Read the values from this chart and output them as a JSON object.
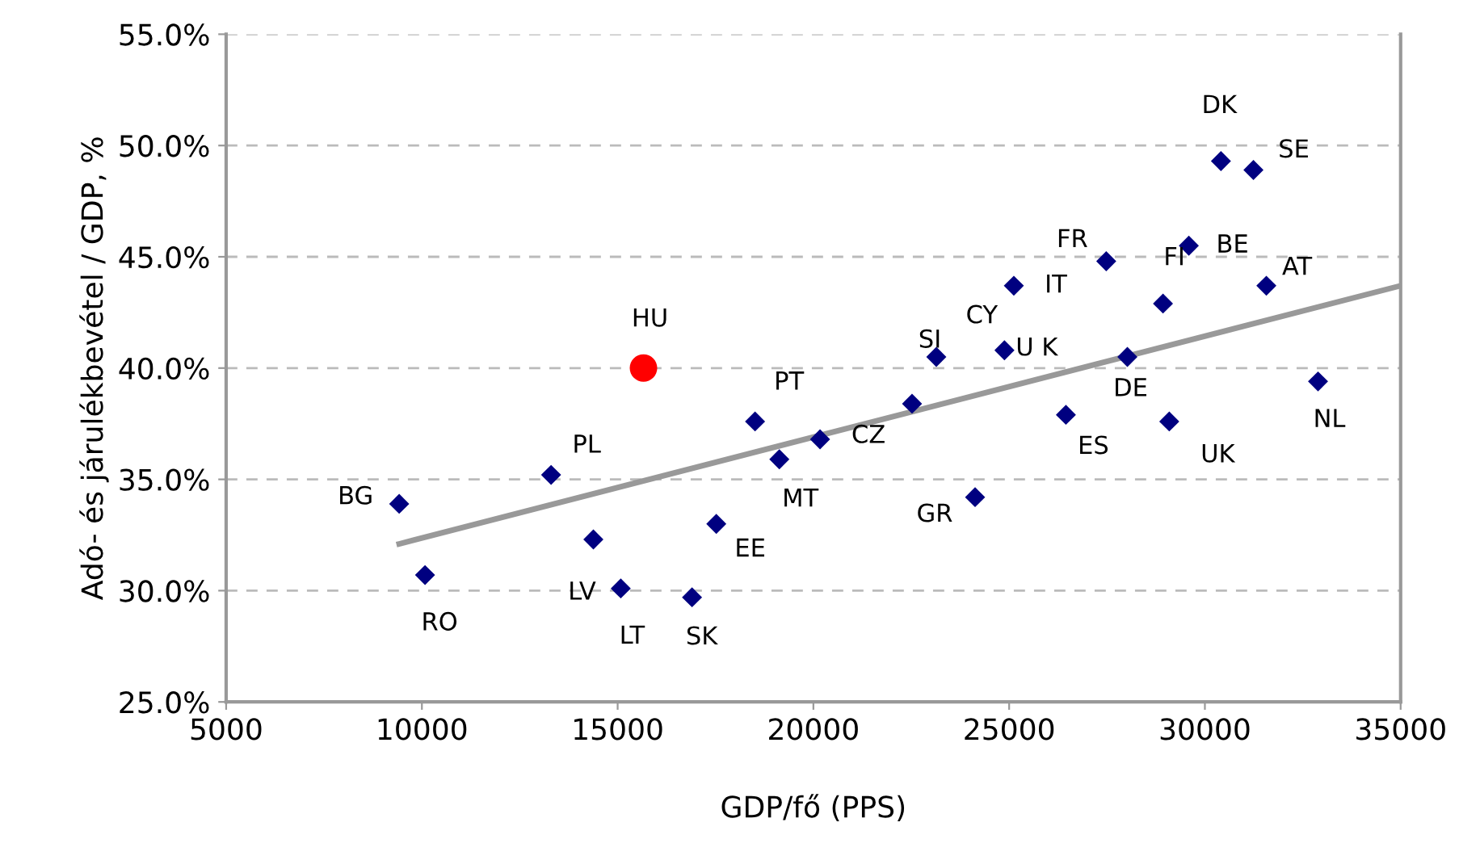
{
  "chart_data": {
    "type": "scatter",
    "xlabel": "GDP/fő (PPS)",
    "ylabel": "Adó- és járulékbevétel / GDP, %",
    "xlim": [
      5000,
      35000
    ],
    "xticks": [
      5000,
      10000,
      15000,
      20000,
      25000,
      30000,
      35000
    ],
    "ylim": [
      25,
      55
    ],
    "yticks": [
      {
        "value": 25,
        "label": "25.0%"
      },
      {
        "value": 30,
        "label": "30.0%"
      },
      {
        "value": 35,
        "label": "35.0%"
      },
      {
        "value": 40,
        "label": "40.0%"
      },
      {
        "value": 45,
        "label": "45.0%"
      },
      {
        "value": 50,
        "label": "50.0%"
      },
      {
        "value": 55,
        "label": "55.0%"
      }
    ],
    "grid": "y",
    "legend": false,
    "series": [
      {
        "marker": "diamond",
        "color": "#000080",
        "x": [
          9420,
          10080,
          13300,
          14380,
          15080,
          16900,
          17520,
          18510,
          19130,
          20170,
          22520,
          23140,
          24880,
          25120,
          24130,
          26450,
          27480,
          28020,
          28930,
          29090,
          29590,
          30410,
          31240,
          31570,
          32890
        ],
        "values": [
          33.9,
          30.7,
          35.2,
          32.3,
          30.1,
          29.7,
          33.0,
          37.6,
          35.9,
          36.8,
          38.4,
          40.5,
          40.8,
          43.7,
          34.2,
          37.9,
          44.8,
          40.5,
          42.9,
          37.6,
          45.5,
          49.3,
          48.9,
          43.7,
          39.4
        ]
      },
      {
        "marker": "circle",
        "color": "#ff0000",
        "x": [
          15660
        ],
        "values": [
          40.0
        ]
      },
      {
        "type": "line",
        "marker": "none",
        "color": "#999999",
        "x": [
          9420,
          35000
        ],
        "values": [
          32.1,
          43.7
        ]
      }
    ],
    "annotations": [
      {
        "text": "BG",
        "x": 9420,
        "y": 33.9
      },
      {
        "text": "RO",
        "x": 10080,
        "y": 30.7
      },
      {
        "text": "PL",
        "x": 13300,
        "y": 35.2
      },
      {
        "text": "HU",
        "x": 15660,
        "y": 40.0
      },
      {
        "text": "LV",
        "x": 14380,
        "y": 32.3
      },
      {
        "text": "LT",
        "x": 15080,
        "y": 30.1
      },
      {
        "text": "SK",
        "x": 16900,
        "y": 29.7
      },
      {
        "text": "EE",
        "x": 17520,
        "y": 33.0
      },
      {
        "text": "PT",
        "x": 18510,
        "y": 37.6
      },
      {
        "text": "MT",
        "x": 19130,
        "y": 35.9
      },
      {
        "text": "CZ",
        "x": 20170,
        "y": 36.8
      },
      {
        "text": "SI",
        "x": 23140,
        "y": 40.5
      },
      {
        "text": "CY",
        "x": 24880,
        "y": 40.8
      },
      {
        "text": "U K",
        "x": 24880,
        "y": 40.8
      },
      {
        "text": "IT",
        "x": 25120,
        "y": 43.7
      },
      {
        "text": "FR",
        "x": 27480,
        "y": 44.8
      },
      {
        "text": "FI",
        "x": 28930,
        "y": 42.9
      },
      {
        "text": "BE",
        "x": 29590,
        "y": 45.5
      },
      {
        "text": "DK",
        "x": 30410,
        "y": 49.3
      },
      {
        "text": "SE",
        "x": 31240,
        "y": 48.9
      },
      {
        "text": "AT",
        "x": 31570,
        "y": 43.7
      },
      {
        "text": "DE",
        "x": 28020,
        "y": 40.5
      },
      {
        "text": "ES",
        "x": 26450,
        "y": 37.9
      },
      {
        "text": "UK",
        "x": 29090,
        "y": 37.6
      },
      {
        "text": "NL",
        "x": 32890,
        "y": 39.4
      },
      {
        "text": "GR",
        "x": 24130,
        "y": 34.2
      }
    ]
  }
}
